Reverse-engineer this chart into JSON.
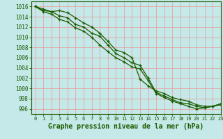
{
  "title": "Graphe pression niveau de la mer (hPa)",
  "xlabel_fontsize": 7,
  "bg_color": "#c5e8e8",
  "grid_color": "#e89898",
  "line_color": "#1a5c00",
  "xlim": [
    -0.5,
    23
  ],
  "ylim": [
    995.0,
    1017.0
  ],
  "xticks": [
    0,
    1,
    2,
    3,
    4,
    5,
    6,
    7,
    8,
    9,
    10,
    11,
    12,
    13,
    14,
    15,
    16,
    17,
    18,
    19,
    20,
    21,
    22,
    23
  ],
  "yticks": [
    996,
    998,
    1000,
    1002,
    1004,
    1006,
    1008,
    1010,
    1012,
    1014,
    1016
  ],
  "series": [
    [
      1016.0,
      1015.5,
      1015.0,
      1015.2,
      1014.8,
      1013.8,
      1012.8,
      1012.0,
      1010.8,
      1009.2,
      1007.5,
      1007.0,
      1006.0,
      1001.8,
      1000.5,
      999.5,
      999.0,
      998.2,
      997.8,
      997.5,
      996.8,
      996.5,
      996.5,
      997.0
    ],
    [
      1016.0,
      1015.2,
      1015.0,
      1014.2,
      1013.8,
      1012.5,
      1012.0,
      1010.8,
      1010.2,
      1008.5,
      1006.8,
      1006.0,
      1005.0,
      1004.5,
      1002.0,
      999.2,
      998.5,
      997.8,
      997.2,
      997.0,
      996.5,
      996.2,
      996.5,
      997.0
    ],
    [
      1016.0,
      1015.0,
      1014.5,
      1013.5,
      1013.0,
      1011.8,
      1011.2,
      1010.0,
      1008.5,
      1007.2,
      1006.0,
      1005.2,
      1004.2,
      1003.8,
      1001.5,
      999.0,
      998.2,
      997.5,
      997.0,
      996.5,
      996.0,
      996.2,
      996.5,
      996.8
    ]
  ]
}
